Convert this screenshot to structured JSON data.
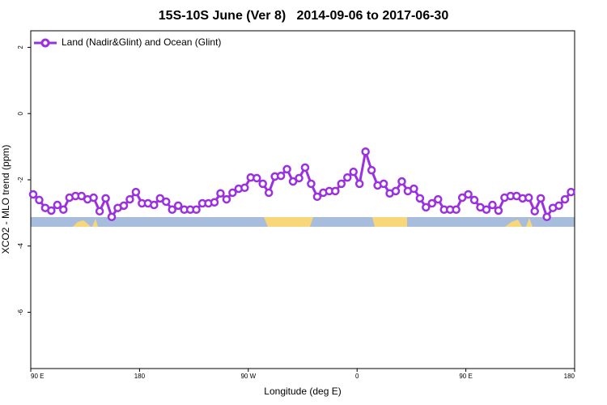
{
  "chart_data": {
    "type": "line",
    "title": "15S-10S June (Ver 8)   2014-09-06 to 2017-06-30",
    "xlabel": "Longitude (deg E)",
    "ylabel": "XCO2 - MLO trend (ppm)",
    "xlim": [
      90,
      540
    ],
    "ylim": [
      -7.7,
      2.5
    ],
    "xticks": [
      {
        "value": 90,
        "label": "90 E"
      },
      180,
      {
        "value": 270,
        "label": "90 W"
      },
      {
        "value": 360,
        "label": "0"
      },
      {
        "value": 450,
        "label": "90 E"
      },
      {
        "value": 540,
        "label": "180"
      }
    ],
    "yticks": [
      2,
      0,
      -2,
      -4,
      -6
    ],
    "legend": "top-left",
    "x": [
      92,
      97,
      102,
      107,
      112,
      117,
      122,
      127,
      132,
      137,
      142,
      147,
      152,
      157,
      162,
      167,
      172,
      177,
      182,
      187,
      192,
      197,
      202,
      207,
      212,
      217,
      222,
      227,
      232,
      237,
      242,
      247,
      252,
      257,
      262,
      267,
      272,
      277,
      282,
      287,
      292,
      297,
      302,
      307,
      312,
      317,
      322,
      327,
      332,
      337,
      342,
      347,
      352,
      357,
      362,
      367,
      372,
      377,
      382,
      387,
      392,
      397,
      402,
      407,
      412,
      417,
      422,
      427,
      432,
      437,
      442,
      447,
      452,
      457,
      462,
      467,
      472,
      477,
      482,
      487,
      492,
      497,
      502,
      507,
      512,
      517,
      522,
      527,
      532,
      537
    ],
    "series": [
      {
        "name": "Land (Nadir&Glint) and Ocean (Glint)",
        "color": "#9b30e0",
        "values": [
          -2.44,
          -2.61,
          -2.85,
          -2.93,
          -2.76,
          -2.9,
          -2.54,
          -2.49,
          -2.49,
          -2.59,
          -2.54,
          -2.95,
          -2.56,
          -3.12,
          -2.85,
          -2.78,
          -2.59,
          -2.37,
          -2.71,
          -2.71,
          -2.76,
          -2.56,
          -2.66,
          -2.9,
          -2.78,
          -2.9,
          -2.9,
          -2.9,
          -2.71,
          -2.71,
          -2.68,
          -2.41,
          -2.59,
          -2.39,
          -2.27,
          -2.24,
          -1.93,
          -1.95,
          -2.12,
          -2.39,
          -1.9,
          -1.88,
          -1.68,
          -2.05,
          -1.95,
          -1.63,
          -2.12,
          -2.51,
          -2.39,
          -2.34,
          -2.34,
          -2.12,
          -1.93,
          -1.76,
          -2.12,
          -1.15,
          -1.71,
          -2.17,
          -2.12,
          -2.41,
          -2.34,
          -2.05,
          -2.34,
          -2.27,
          -2.56,
          -2.83,
          -2.71,
          -2.59,
          -2.9,
          -2.9,
          -2.9,
          -2.54,
          -2.44,
          -2.61,
          -2.83,
          -2.9,
          -2.76,
          -2.93,
          -2.54,
          -2.49,
          -2.49,
          -2.56,
          -2.54,
          -2.95,
          -2.56,
          -3.12,
          -2.85,
          -2.78,
          -2.59,
          -2.37
        ]
      }
    ]
  }
}
